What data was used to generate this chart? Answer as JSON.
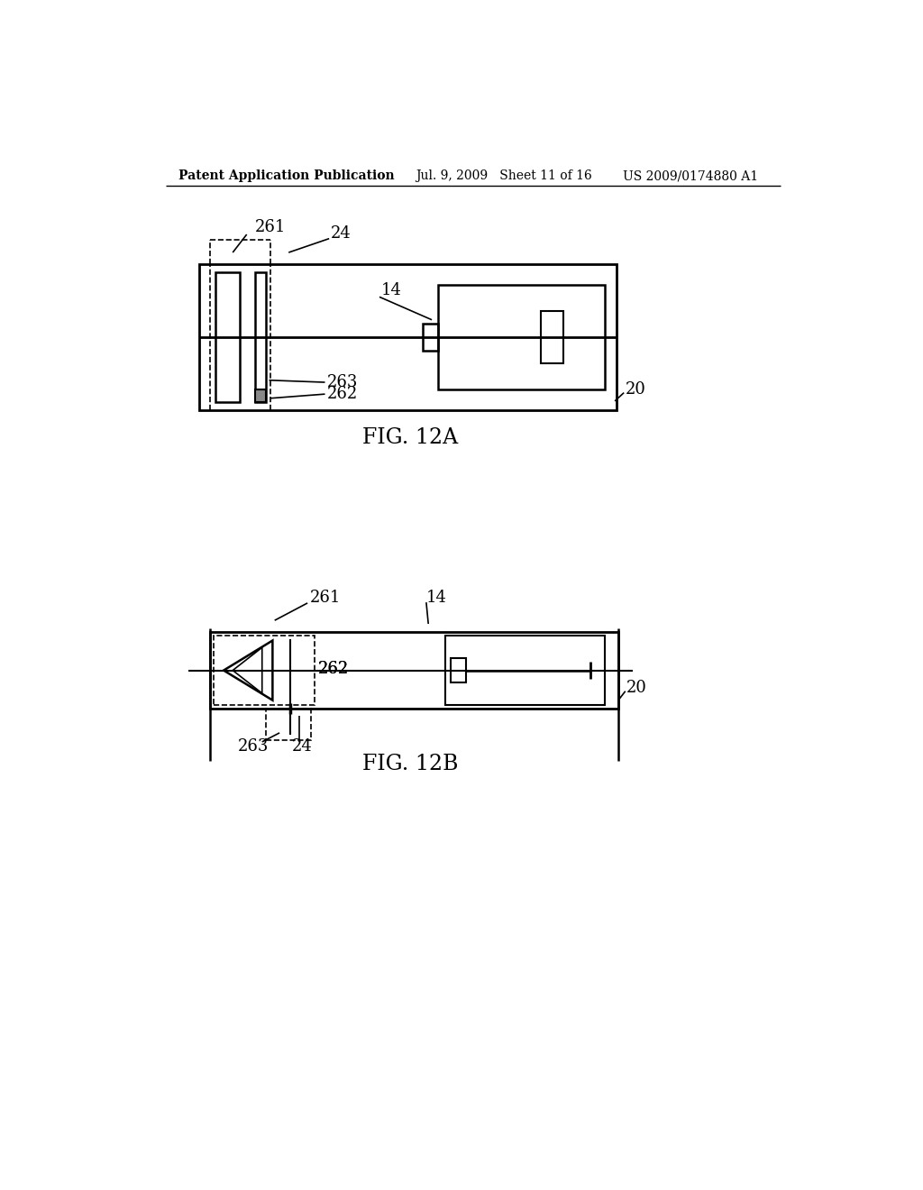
{
  "header_left": "Patent Application Publication",
  "header_mid": "Jul. 9, 2009   Sheet 11 of 16",
  "header_right": "US 2009/0174880 A1",
  "fig_label_a": "FIG. 12A",
  "fig_label_b": "FIG. 12B",
  "bg_color": "#ffffff",
  "line_color": "#000000"
}
